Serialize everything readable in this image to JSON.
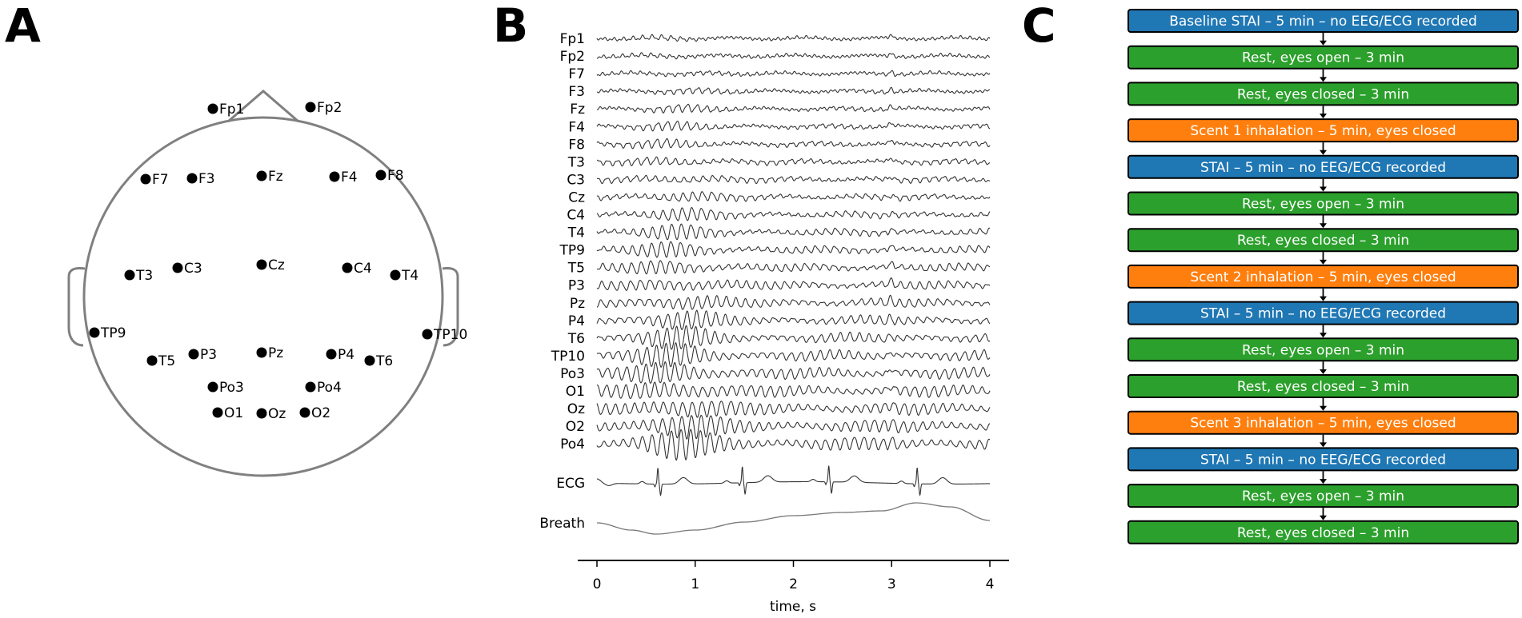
{
  "panels": {
    "a": "A",
    "b": "B",
    "c": "C"
  },
  "colors": {
    "head_outline": "#808080",
    "electrode": "#000000",
    "trace": "#333333",
    "breath_trace": "#777777",
    "step_blue": "#1f77b4",
    "step_green": "#2ca02c",
    "step_orange": "#ff7f0e",
    "step_border": "#000000"
  },
  "electrodes": [
    "Fp1",
    "Fp2",
    "F7",
    "F3",
    "Fz",
    "F4",
    "F8",
    "T3",
    "C3",
    "Cz",
    "C4",
    "T4",
    "TP9",
    "TP10",
    "T5",
    "P3",
    "Pz",
    "P4",
    "T6",
    "Po3",
    "Po4",
    "O1",
    "Oz",
    "O2"
  ],
  "eeg_channels": [
    "Fp1",
    "Fp2",
    "F7",
    "F3",
    "Fz",
    "F4",
    "F8",
    "T3",
    "C3",
    "Cz",
    "C4",
    "T4",
    "TP9",
    "T5",
    "P3",
    "Pz",
    "P4",
    "T6",
    "TP10",
    "Po3",
    "O1",
    "Oz",
    "O2",
    "Po4"
  ],
  "extra_channels": {
    "ecg": "ECG",
    "breath": "Breath"
  },
  "time_axis": {
    "label": "time, s",
    "ticks": [
      "0",
      "1",
      "2",
      "3",
      "4"
    ],
    "range": [
      0,
      4
    ]
  },
  "protocol_steps": [
    {
      "text": "Baseline STAI – 5 min – no EEG/ECG recorded",
      "kind": "blue"
    },
    {
      "text": "Rest, eyes open – 3 min",
      "kind": "green"
    },
    {
      "text": "Rest, eyes closed – 3 min",
      "kind": "green"
    },
    {
      "text": "Scent 1 inhalation – 5 min, eyes closed",
      "kind": "orange"
    },
    {
      "text": "STAI – 5 min – no EEG/ECG recorded",
      "kind": "blue"
    },
    {
      "text": "Rest, eyes open – 3 min",
      "kind": "green"
    },
    {
      "text": "Rest, eyes closed – 3 min",
      "kind": "green"
    },
    {
      "text": "Scent 2 inhalation – 5 min, eyes closed",
      "kind": "orange"
    },
    {
      "text": "STAI – 5 min – no EEG/ECG recorded",
      "kind": "blue"
    },
    {
      "text": "Rest, eyes open – 3 min",
      "kind": "green"
    },
    {
      "text": "Rest, eyes closed – 3 min",
      "kind": "green"
    },
    {
      "text": "Scent 3 inhalation – 5 min, eyes closed",
      "kind": "orange"
    },
    {
      "text": "STAI – 5 min – no EEG/ECG recorded",
      "kind": "blue"
    },
    {
      "text": "Rest, eyes open – 3 min",
      "kind": "green"
    },
    {
      "text": "Rest, eyes closed – 3 min",
      "kind": "green"
    }
  ]
}
